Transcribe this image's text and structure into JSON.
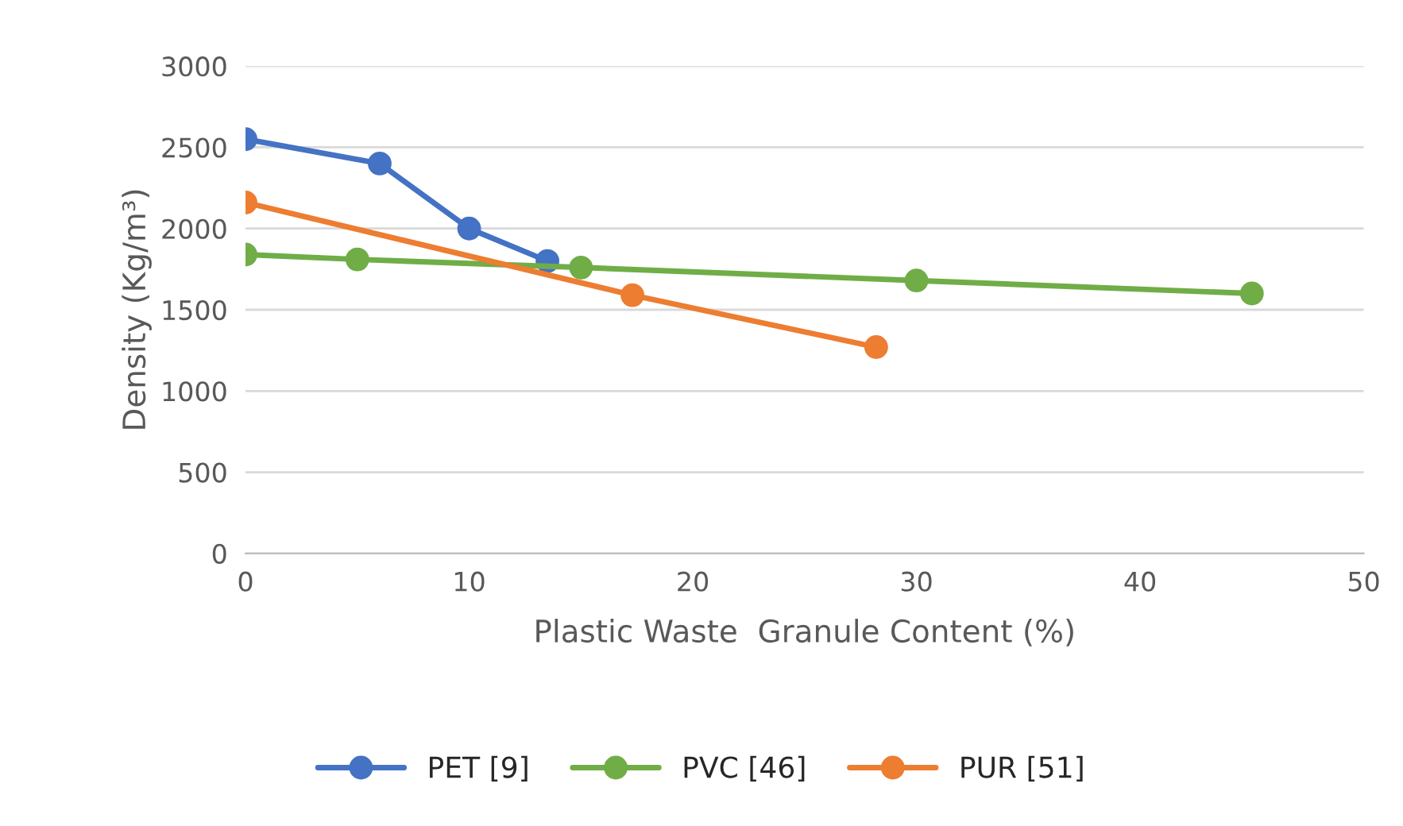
{
  "chart_data": {
    "type": "line",
    "xlabel": "Plastic Waste  Granule Content (%)",
    "ylabel": "Density (Kg/m³)",
    "xlim": [
      0,
      50
    ],
    "xticks": [
      0,
      10,
      20,
      30,
      40,
      50
    ],
    "ylim": [
      0,
      3000
    ],
    "yticks": [
      0,
      500,
      1000,
      1500,
      2000,
      2500,
      3000
    ],
    "grid": "y",
    "legend": "bottom",
    "marker": "circle",
    "line_style": "solid",
    "series": [
      {
        "name": "PET [9]",
        "color": "#4472c4",
        "x": [
          0,
          6,
          10,
          13.5
        ],
        "values": [
          2550,
          2400,
          2000,
          1800
        ]
      },
      {
        "name": "PVC [46]",
        "color": "#70ad47",
        "x": [
          0,
          5,
          15,
          30,
          45
        ],
        "values": [
          1840,
          1810,
          1760,
          1680,
          1600
        ]
      },
      {
        "name": "PUR [51]",
        "color": "#ed7d31",
        "x": [
          0,
          17.3,
          28.2
        ],
        "values": [
          2160,
          1590,
          1270
        ]
      }
    ]
  }
}
